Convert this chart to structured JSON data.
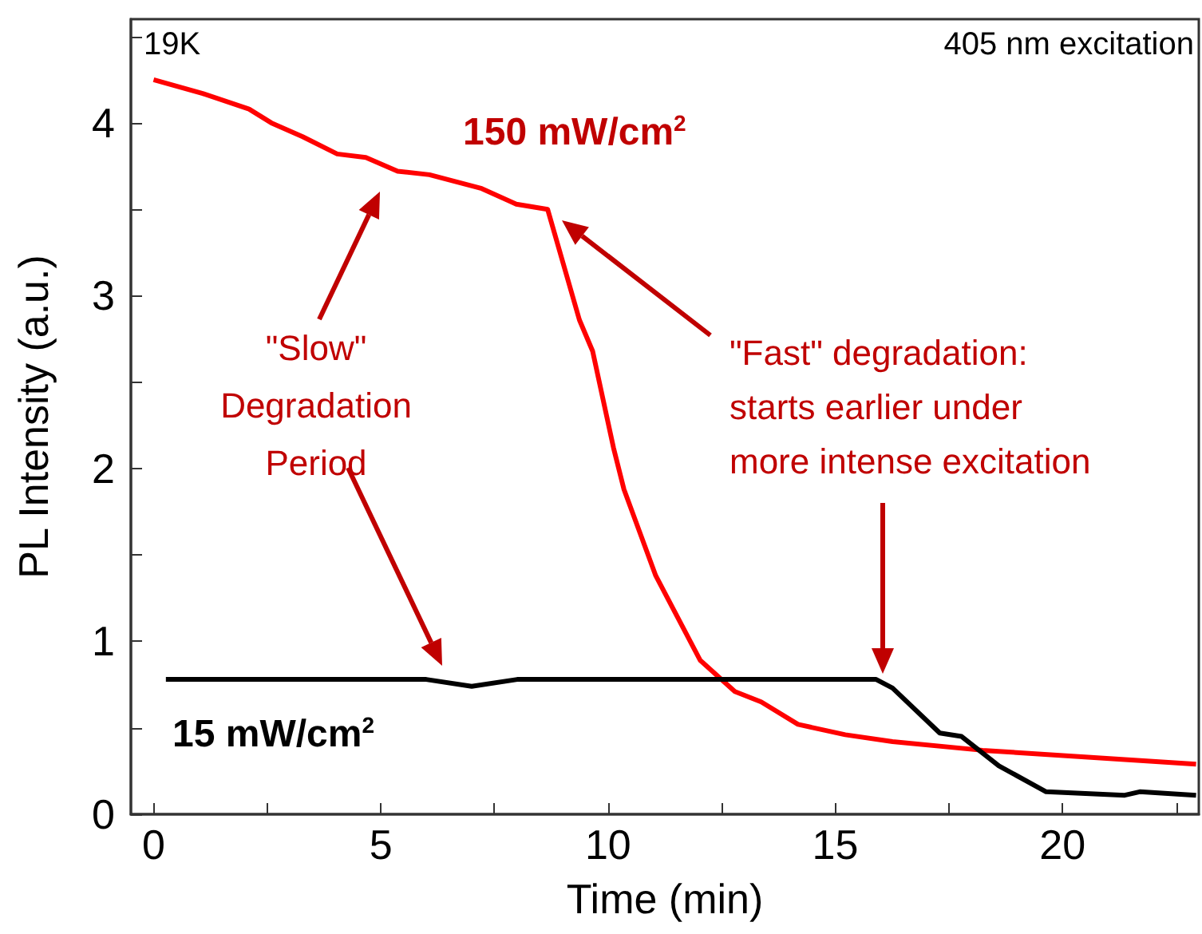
{
  "chart_data": {
    "type": "line",
    "xlabel": "Time (min)",
    "ylabel": "PL Intensity (a.u.)",
    "xlim": [
      -0.5,
      23
    ],
    "ylim": [
      0,
      4.6
    ],
    "xticks": [
      0,
      {
        "value": 2.5,
        "label": null
      },
      5,
      {
        "value": 7.5,
        "label": null
      },
      10,
      {
        "value": 12.5,
        "label": null
      },
      15,
      {
        "value": 17.5,
        "label": null
      },
      20,
      {
        "value": 22.5,
        "label": null
      }
    ],
    "yticks": [
      0,
      {
        "value": 0.5,
        "label": null
      },
      1,
      {
        "value": 1.5,
        "label": null
      },
      2,
      {
        "value": 2.5,
        "label": null
      },
      3,
      {
        "value": 3.5,
        "label": null
      },
      4,
      {
        "value": 4.5,
        "label": null
      }
    ],
    "grid": false,
    "marker": "none",
    "line_style": "solid",
    "series": [
      {
        "name": "150 mW/cm$^{2}$",
        "color": "#ff0000",
        "x": [
          0,
          1.08,
          2.1,
          2.59,
          3.28,
          4.04,
          4.67,
          5.37,
          6.07,
          7.22,
          7.98,
          8.67,
          9.37,
          9.66,
          10.12,
          10.35,
          11.05,
          12.03,
          12.79,
          13.37,
          14.18,
          15.22,
          16.26,
          18.24,
          20.56,
          22.94
        ],
        "values": [
          4.25,
          4.17,
          4.08,
          4.0,
          3.92,
          3.82,
          3.8,
          3.72,
          3.7,
          3.62,
          3.53,
          3.5,
          2.86,
          2.68,
          2.12,
          1.88,
          1.38,
          0.89,
          0.71,
          0.65,
          0.52,
          0.46,
          0.42,
          0.37,
          0.33,
          0.29
        ]
      },
      {
        "name": "15 mW/cm$^{2}$",
        "color": "#000000",
        "x": [
          0.27,
          2,
          4,
          6,
          7.0,
          8,
          10,
          12,
          14,
          15.9,
          16.26,
          17.3,
          17.78,
          18.6,
          19.64,
          21.37,
          21.7,
          22.94
        ],
        "values": [
          0.78,
          0.78,
          0.78,
          0.78,
          0.74,
          0.78,
          0.78,
          0.78,
          0.78,
          0.78,
          0.73,
          0.47,
          0.45,
          0.28,
          0.13,
          0.11,
          0.13,
          0.11
        ]
      }
    ],
    "annotations": [
      "19K",
      "405 nm excitation",
      "\"Slow\"\nDegradation\nPeriod",
      "\"Fast\" degradation:\nstarts earlier under\nmore intense excitation"
    ]
  }
}
